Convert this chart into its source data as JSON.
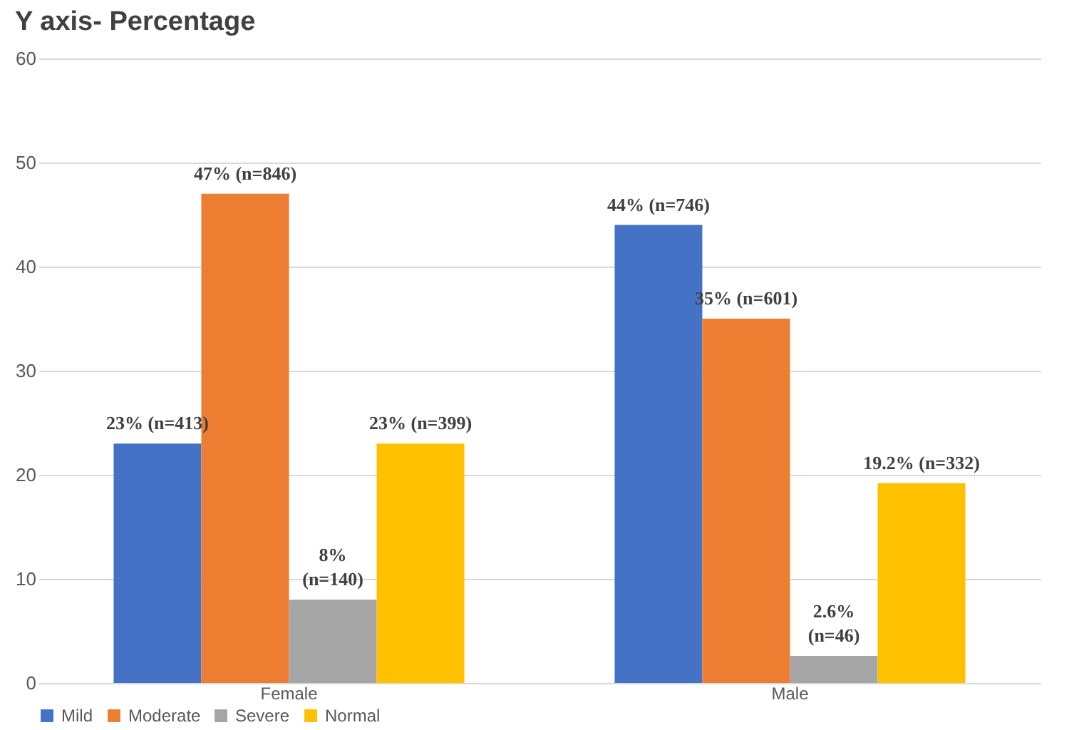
{
  "chart_data": {
    "type": "bar",
    "title": "Y axis- Percentage",
    "categories": [
      "Female",
      "Male"
    ],
    "series": [
      {
        "name": "Mild",
        "color": "#4472c4",
        "values": [
          23,
          44
        ],
        "value_labels": [
          "23% (n=413)",
          "44% (n=746)"
        ]
      },
      {
        "name": "Moderate",
        "color": "#ed7d31",
        "values": [
          47,
          35
        ],
        "value_labels": [
          "47% (n=846)",
          "35% (n=601)"
        ]
      },
      {
        "name": "Severe",
        "color": "#a5a5a5",
        "values": [
          8,
          2.6
        ],
        "value_labels": [
          "8%\n(n=140)",
          "2.6%\n(n=46)"
        ]
      },
      {
        "name": "Normal",
        "color": "#ffc000",
        "values": [
          23,
          19.2
        ],
        "value_labels": [
          "23% (n=399)",
          "19.2% (n=332)"
        ]
      }
    ],
    "ylim": [
      0,
      60
    ],
    "yticks": [
      0,
      10,
      20,
      30,
      40,
      50,
      60
    ],
    "grid": "y",
    "legend": "bottom"
  }
}
